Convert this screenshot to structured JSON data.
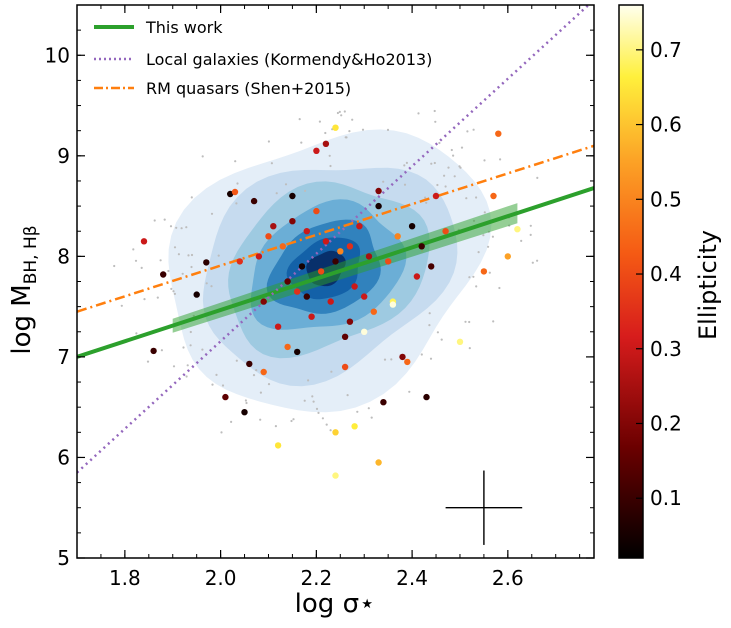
{
  "chart_data": {
    "type": "scatter",
    "xlabel": "log σ⋆",
    "ylabel_main": "log M",
    "ylabel_sub": "BH, Hβ",
    "xlim": [
      1.7,
      2.78
    ],
    "ylim": [
      5.0,
      10.5
    ],
    "xticks": [
      1.8,
      2.0,
      2.2,
      2.4,
      2.6
    ],
    "xtick_labels": [
      "1.8",
      "2.0",
      "2.2",
      "2.4",
      "2.6"
    ],
    "yticks": [
      5,
      6,
      7,
      8,
      9,
      10
    ],
    "ytick_labels": [
      "5",
      "6",
      "7",
      "8",
      "9",
      "10"
    ],
    "colorbar": {
      "label": "Ellipticity",
      "range": [
        0.02,
        0.76
      ],
      "ticks": [
        0.1,
        0.2,
        0.3,
        0.4,
        0.5,
        0.6,
        0.7
      ],
      "tick_labels": [
        "0.1",
        "0.2",
        "0.3",
        "0.4",
        "0.5",
        "0.6",
        "0.7"
      ]
    },
    "lines": [
      {
        "name": "This work",
        "color": "#2ca02c",
        "style": "solid",
        "x": [
          1.7,
          2.78
        ],
        "y": [
          7.0,
          8.68
        ]
      },
      {
        "name": "Local galaxies (Kormendy&Ho2013)",
        "color": "#9467bd",
        "style": "dotted",
        "x": [
          1.7,
          2.78
        ],
        "y": [
          5.85,
          10.55
        ]
      },
      {
        "name": "RM quasars (Shen+2015)",
        "color": "#ff7f0e",
        "style": "dashdot",
        "x": [
          1.7,
          2.78
        ],
        "y": [
          7.45,
          9.1
        ]
      }
    ],
    "fit_band": {
      "x": [
        1.9,
        2.62
      ],
      "y_center": [
        7.31,
        8.43
      ],
      "half_width": [
        0.07,
        0.1
      ]
    },
    "error_bar": {
      "x": 2.55,
      "y": 5.5,
      "xerr": 0.08,
      "yerr": 0.37
    },
    "contour_levels": [
      {
        "color": "#e4eef8",
        "rx": 0.33,
        "ry": 1.35
      },
      {
        "color": "#c6dbef",
        "rx": 0.265,
        "ry": 1.05
      },
      {
        "color": "#9ecae1",
        "rx": 0.21,
        "ry": 0.82
      },
      {
        "color": "#6baed6",
        "rx": 0.16,
        "ry": 0.62
      },
      {
        "color": "#3182bd",
        "rx": 0.115,
        "ry": 0.45
      },
      {
        "color": "#1361a8",
        "rx": 0.075,
        "ry": 0.3
      },
      {
        "color": "#08306b",
        "rx": 0.04,
        "ry": 0.17
      }
    ],
    "contour_center": [
      2.22,
      7.88
    ],
    "points": [
      {
        "x": 1.84,
        "y": 8.15,
        "e": 0.3
      },
      {
        "x": 1.86,
        "y": 7.06,
        "e": 0.1
      },
      {
        "x": 1.88,
        "y": 7.82,
        "e": 0.1
      },
      {
        "x": 1.95,
        "y": 7.62,
        "e": 0.05
      },
      {
        "x": 1.97,
        "y": 7.94,
        "e": 0.08
      },
      {
        "x": 2.01,
        "y": 6.6,
        "e": 0.15
      },
      {
        "x": 2.02,
        "y": 8.62,
        "e": 0.05
      },
      {
        "x": 2.03,
        "y": 8.64,
        "e": 0.42
      },
      {
        "x": 2.04,
        "y": 7.95,
        "e": 0.35
      },
      {
        "x": 2.05,
        "y": 6.45,
        "e": 0.05
      },
      {
        "x": 2.06,
        "y": 6.93,
        "e": 0.1
      },
      {
        "x": 2.07,
        "y": 8.55,
        "e": 0.1
      },
      {
        "x": 2.08,
        "y": 8.0,
        "e": 0.3
      },
      {
        "x": 2.09,
        "y": 7.55,
        "e": 0.2
      },
      {
        "x": 2.1,
        "y": 8.2,
        "e": 0.4
      },
      {
        "x": 2.11,
        "y": 8.3,
        "e": 0.25
      },
      {
        "x": 2.12,
        "y": 7.3,
        "e": 0.3
      },
      {
        "x": 2.13,
        "y": 8.1,
        "e": 0.45
      },
      {
        "x": 2.14,
        "y": 7.75,
        "e": 0.15
      },
      {
        "x": 2.15,
        "y": 8.35,
        "e": 0.2
      },
      {
        "x": 2.16,
        "y": 7.65,
        "e": 0.35
      },
      {
        "x": 2.17,
        "y": 7.9,
        "e": 0.05
      },
      {
        "x": 2.18,
        "y": 8.25,
        "e": 0.3
      },
      {
        "x": 2.19,
        "y": 7.4,
        "e": 0.3
      },
      {
        "x": 2.2,
        "y": 9.05,
        "e": 0.3
      },
      {
        "x": 2.21,
        "y": 7.85,
        "e": 0.4
      },
      {
        "x": 2.22,
        "y": 9.12,
        "e": 0.25
      },
      {
        "x": 2.23,
        "y": 7.55,
        "e": 0.3
      },
      {
        "x": 2.24,
        "y": 7.95,
        "e": 0.1
      },
      {
        "x": 2.25,
        "y": 8.05,
        "e": 0.5
      },
      {
        "x": 2.26,
        "y": 7.2,
        "e": 0.15
      },
      {
        "x": 2.27,
        "y": 8.1,
        "e": 0.35
      },
      {
        "x": 2.28,
        "y": 7.7,
        "e": 0.3
      },
      {
        "x": 2.29,
        "y": 8.3,
        "e": 0.3
      },
      {
        "x": 2.3,
        "y": 7.6,
        "e": 0.3
      },
      {
        "x": 2.31,
        "y": 8.0,
        "e": 0.25
      },
      {
        "x": 2.32,
        "y": 7.45,
        "e": 0.45
      },
      {
        "x": 2.33,
        "y": 8.5,
        "e": 0.05
      },
      {
        "x": 2.34,
        "y": 6.55,
        "e": 0.1
      },
      {
        "x": 2.35,
        "y": 7.95,
        "e": 0.4
      },
      {
        "x": 2.36,
        "y": 7.55,
        "e": 0.68
      },
      {
        "x": 2.37,
        "y": 8.2,
        "e": 0.5
      },
      {
        "x": 2.38,
        "y": 7.0,
        "e": 0.2
      },
      {
        "x": 2.39,
        "y": 6.95,
        "e": 0.45
      },
      {
        "x": 2.4,
        "y": 8.3,
        "e": 0.05
      },
      {
        "x": 2.41,
        "y": 7.8,
        "e": 0.3
      },
      {
        "x": 2.42,
        "y": 8.1,
        "e": 0.1
      },
      {
        "x": 2.43,
        "y": 6.6,
        "e": 0.08
      },
      {
        "x": 2.44,
        "y": 7.9,
        "e": 0.12
      },
      {
        "x": 2.45,
        "y": 8.6,
        "e": 0.3
      },
      {
        "x": 2.47,
        "y": 8.25,
        "e": 0.4
      },
      {
        "x": 2.5,
        "y": 7.15,
        "e": 0.7
      },
      {
        "x": 2.55,
        "y": 7.85,
        "e": 0.45
      },
      {
        "x": 2.57,
        "y": 8.6,
        "e": 0.45
      },
      {
        "x": 2.58,
        "y": 9.22,
        "e": 0.45
      },
      {
        "x": 2.6,
        "y": 8.0,
        "e": 0.55
      },
      {
        "x": 2.62,
        "y": 8.27,
        "e": 0.7
      },
      {
        "x": 2.12,
        "y": 6.12,
        "e": 0.65
      },
      {
        "x": 2.24,
        "y": 6.25,
        "e": 0.62
      },
      {
        "x": 2.28,
        "y": 6.31,
        "e": 0.66
      },
      {
        "x": 2.24,
        "y": 5.82,
        "e": 0.7
      },
      {
        "x": 2.33,
        "y": 5.95,
        "e": 0.58
      },
      {
        "x": 2.24,
        "y": 9.28,
        "e": 0.65
      },
      {
        "x": 2.14,
        "y": 7.1,
        "e": 0.45
      },
      {
        "x": 2.16,
        "y": 7.05,
        "e": 0.05
      },
      {
        "x": 2.26,
        "y": 6.9,
        "e": 0.4
      },
      {
        "x": 2.3,
        "y": 7.25,
        "e": 0.75
      },
      {
        "x": 2.36,
        "y": 7.52,
        "e": 0.75
      },
      {
        "x": 2.09,
        "y": 6.85,
        "e": 0.45
      },
      {
        "x": 2.2,
        "y": 8.45,
        "e": 0.4
      },
      {
        "x": 2.18,
        "y": 7.6,
        "e": 0.1
      },
      {
        "x": 2.27,
        "y": 7.35,
        "e": 0.2
      },
      {
        "x": 2.22,
        "y": 8.15,
        "e": 0.3
      },
      {
        "x": 2.15,
        "y": 8.6,
        "e": 0.05
      },
      {
        "x": 2.33,
        "y": 8.65,
        "e": 0.2
      }
    ]
  }
}
